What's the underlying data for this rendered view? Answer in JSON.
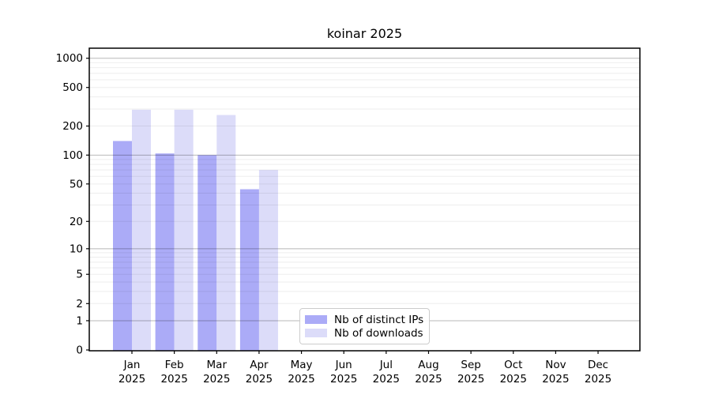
{
  "title": "koinar 2025",
  "chart_data": {
    "type": "bar",
    "title": "koinar 2025",
    "categories": [
      "Jan 2025",
      "Feb 2025",
      "Mar 2025",
      "Apr 2025",
      "May 2025",
      "Jun 2025",
      "Jul 2025",
      "Aug 2025",
      "Sep 2025",
      "Oct 2025",
      "Nov 2025",
      "Dec 2025"
    ],
    "series": [
      {
        "name": "Nb of distinct IPs",
        "color": "#ababf7",
        "values": [
          140,
          104,
          100,
          44,
          0,
          0,
          0,
          0,
          0,
          0,
          0,
          0
        ]
      },
      {
        "name": "Nb of downloads",
        "color": "#dcdcf9",
        "values": [
          295,
          295,
          260,
          70,
          0,
          0,
          0,
          0,
          0,
          0,
          0,
          0
        ]
      }
    ],
    "yscale": "log1p",
    "ylim": [
      0,
      1270
    ],
    "y_tick_labels": [
      0,
      1,
      2,
      5,
      10,
      20,
      50,
      100,
      200,
      500,
      1000
    ],
    "major_gridlines": [
      1,
      10,
      100,
      1000
    ],
    "minor_gridlines": [
      2,
      3,
      4,
      5,
      6,
      7,
      8,
      9,
      20,
      30,
      40,
      50,
      60,
      70,
      80,
      90,
      200,
      300,
      400,
      500,
      600,
      700,
      800,
      900
    ],
    "grid": "horizontal",
    "legend_position": "lower center-left inside plot"
  },
  "colors": {
    "axis": "#000000",
    "major_grid": "rgba(0,0,0,0.28)",
    "minor_grid": "rgba(0,0,0,0.07)",
    "text": "#000000",
    "legend_border": "#cccccc"
  }
}
